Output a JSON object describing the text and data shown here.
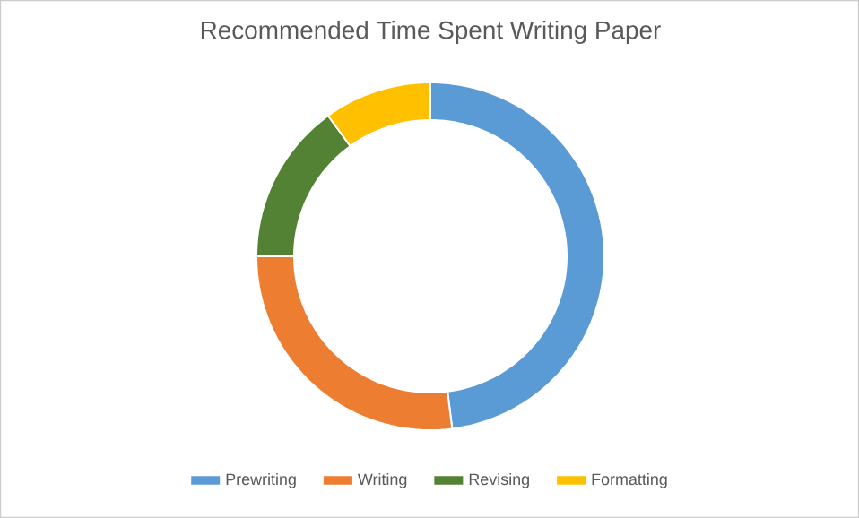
{
  "chart_data": {
    "type": "donut",
    "title": "Recommended Time Spent Writing Paper",
    "categories": [
      "Prewriting",
      "Writing",
      "Revising",
      "Formatting"
    ],
    "values": [
      48,
      27,
      15,
      10
    ],
    "colors": [
      "#5b9bd5",
      "#ed7d31",
      "#548235",
      "#ffc000"
    ],
    "legend": "bottom"
  }
}
